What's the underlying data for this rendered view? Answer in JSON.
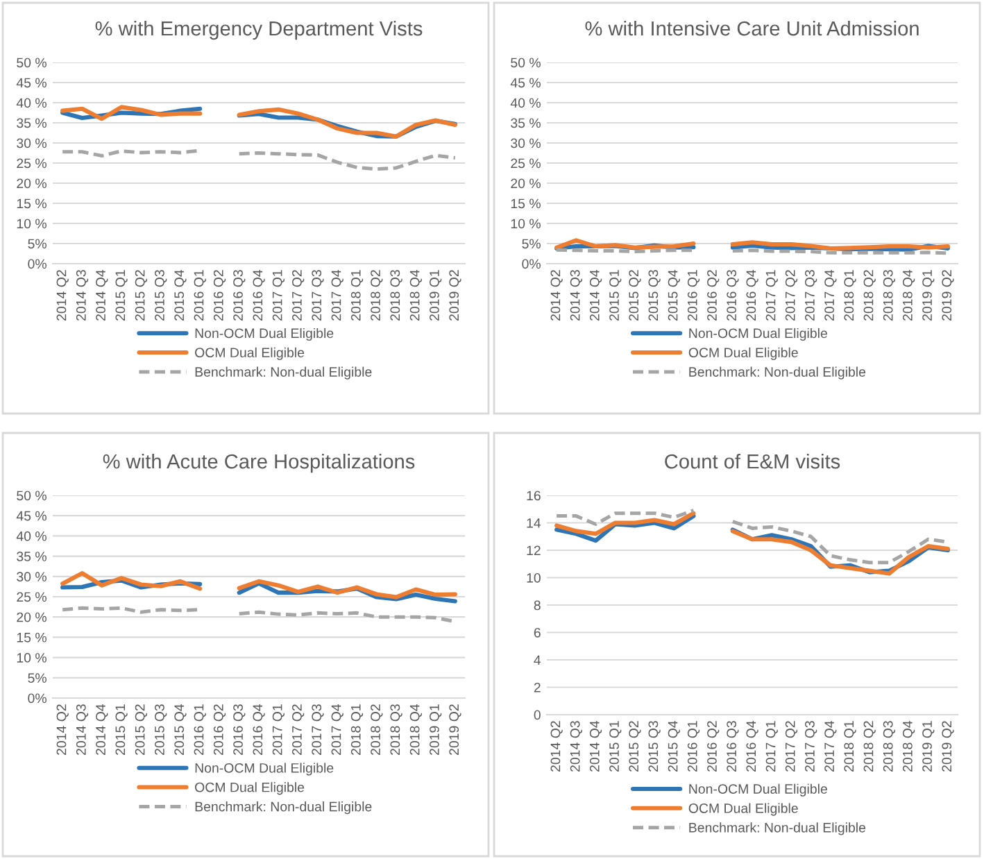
{
  "chart_data": [
    {
      "type": "line",
      "title": "% with Emergency Department Vists",
      "categories": [
        "2014 Q2",
        "2014 Q3",
        "2014 Q4",
        "2015 Q1",
        "2015 Q2",
        "2015 Q3",
        "2015 Q4",
        "2016 Q1",
        "2016 Q2",
        "2016 Q3",
        "2016 Q4",
        "2017 Q1",
        "2017 Q2",
        "2017 Q3",
        "2017 Q4",
        "2018 Q1",
        "2018 Q2",
        "2018 Q3",
        "2018 Q4",
        "2019 Q1",
        "2019 Q2"
      ],
      "ylim": [
        0,
        50
      ],
      "yticks": [
        {
          "value": 0,
          "label": "0%"
        },
        {
          "value": 5,
          "label": "5%"
        },
        {
          "value": 10,
          "label": "10 %"
        },
        {
          "value": 15,
          "label": "15 %"
        },
        {
          "value": 20,
          "label": "20 %"
        },
        {
          "value": 25,
          "label": "25 %"
        },
        {
          "value": 30,
          "label": "30 %"
        },
        {
          "value": 35,
          "label": "35 %"
        },
        {
          "value": 40,
          "label": "40 %"
        },
        {
          "value": 45,
          "label": "45 %"
        },
        {
          "value": 50,
          "label": "50 %"
        }
      ],
      "grid": "y",
      "legend": "bottom",
      "marker": "none",
      "series": [
        {
          "name": "Non-OCM Dual Eligible",
          "color": "#2e75b6",
          "line_style": "solid",
          "values": [
            37.5,
            36.2,
            36.8,
            37.5,
            37.3,
            37.2,
            38.0,
            38.5,
            null,
            36.8,
            37.2,
            36.3,
            36.3,
            35.8,
            34.2,
            32.8,
            31.7,
            31.6,
            34.0,
            35.5,
            34.7
          ]
        },
        {
          "name": "OCM Dual Eligible",
          "color": "#ed7d31",
          "line_style": "solid",
          "values": [
            38.0,
            38.5,
            36.0,
            38.9,
            38.2,
            37.0,
            37.3,
            37.3,
            null,
            37.0,
            37.9,
            38.3,
            37.3,
            35.8,
            33.6,
            32.5,
            32.5,
            31.6,
            34.5,
            35.6,
            34.5
          ]
        },
        {
          "name": "Benchmark: Non-dual Eligible",
          "color": "#a5a5a5",
          "line_style": "dashed",
          "values": [
            27.8,
            27.8,
            26.8,
            28.0,
            27.6,
            27.8,
            27.6,
            28.1,
            null,
            27.3,
            27.5,
            27.3,
            27.1,
            27.0,
            25.2,
            23.9,
            23.5,
            23.8,
            25.4,
            26.9,
            26.3
          ]
        }
      ]
    },
    {
      "type": "line",
      "title": "% with Intensive Care Unit Admission",
      "categories": [
        "2014 Q2",
        "2014 Q3",
        "2014 Q4",
        "2015 Q1",
        "2015 Q2",
        "2015 Q3",
        "2015 Q4",
        "2016 Q1",
        "2016 Q2",
        "2016 Q3",
        "2016 Q4",
        "2017 Q1",
        "2017 Q2",
        "2017 Q3",
        "2017 Q4",
        "2018 Q1",
        "2018 Q2",
        "2018 Q3",
        "2018 Q4",
        "2019 Q1",
        "2019 Q2"
      ],
      "ylim": [
        0,
        50
      ],
      "yticks": [
        {
          "value": 0,
          "label": "0%"
        },
        {
          "value": 5,
          "label": "5%"
        },
        {
          "value": 10,
          "label": "10 %"
        },
        {
          "value": 15,
          "label": "15 %"
        },
        {
          "value": 20,
          "label": "20 %"
        },
        {
          "value": 25,
          "label": "25 %"
        },
        {
          "value": 30,
          "label": "30 %"
        },
        {
          "value": 35,
          "label": "35 %"
        },
        {
          "value": 40,
          "label": "40 %"
        },
        {
          "value": 45,
          "label": "45 %"
        },
        {
          "value": 50,
          "label": "50 %"
        }
      ],
      "grid": "y",
      "legend": "bottom",
      "marker": "none",
      "series": [
        {
          "name": "Non-OCM Dual Eligible",
          "color": "#2e75b6",
          "line_style": "solid",
          "values": [
            3.8,
            4.3,
            4.3,
            4.4,
            3.9,
            4.5,
            4.0,
            4.1,
            null,
            4.0,
            4.5,
            4.0,
            3.9,
            4.0,
            3.8,
            3.6,
            3.7,
            3.6,
            3.5,
            4.4,
            3.8
          ]
        },
        {
          "name": "OCM Dual Eligible",
          "color": "#ed7d31",
          "line_style": "solid",
          "values": [
            4.0,
            5.8,
            4.3,
            4.6,
            4.0,
            4.2,
            4.3,
            5.0,
            null,
            4.8,
            5.3,
            4.8,
            4.8,
            4.4,
            3.8,
            3.9,
            4.1,
            4.3,
            4.3,
            4.0,
            4.3
          ]
        },
        {
          "name": "Benchmark: Non-dual Eligible",
          "color": "#a5a5a5",
          "line_style": "dashed",
          "values": [
            3.4,
            3.3,
            3.2,
            3.2,
            3.0,
            3.2,
            3.3,
            3.3,
            null,
            3.2,
            3.3,
            3.1,
            3.1,
            3.0,
            2.7,
            2.7,
            2.7,
            2.7,
            2.7,
            2.8,
            2.6
          ]
        }
      ]
    },
    {
      "type": "line",
      "title": "% with Acute Care Hospitalizations",
      "categories": [
        "2014 Q2",
        "2014 Q3",
        "2014 Q4",
        "2015 Q1",
        "2015 Q2",
        "2015 Q3",
        "2015 Q4",
        "2016 Q1",
        "2016 Q2",
        "2016 Q3",
        "2016 Q4",
        "2017 Q1",
        "2017 Q2",
        "2017 Q3",
        "2017 Q4",
        "2018 Q1",
        "2018 Q2",
        "2018 Q3",
        "2018 Q4",
        "2019 Q1",
        "2019 Q2"
      ],
      "ylim": [
        0,
        50
      ],
      "yticks": [
        {
          "value": 0,
          "label": "0%"
        },
        {
          "value": 5,
          "label": "5%"
        },
        {
          "value": 10,
          "label": "10 %"
        },
        {
          "value": 15,
          "label": "15 %"
        },
        {
          "value": 20,
          "label": "20 %"
        },
        {
          "value": 25,
          "label": "25 %"
        },
        {
          "value": 30,
          "label": "30 %"
        },
        {
          "value": 35,
          "label": "35 %"
        },
        {
          "value": 40,
          "label": "40 %"
        },
        {
          "value": 45,
          "label": "45 %"
        },
        {
          "value": 50,
          "label": "50 %"
        }
      ],
      "grid": "y",
      "legend": "bottom",
      "marker": "none",
      "series": [
        {
          "name": "Non-OCM Dual Eligible",
          "color": "#2e75b6",
          "line_style": "solid",
          "values": [
            27.3,
            27.4,
            28.6,
            29.0,
            27.3,
            28.0,
            28.3,
            28.1,
            null,
            26.0,
            28.3,
            26.0,
            26.0,
            26.4,
            26.3,
            27.0,
            24.9,
            24.4,
            25.5,
            24.5,
            23.9
          ]
        },
        {
          "name": "OCM Dual Eligible",
          "color": "#ed7d31",
          "line_style": "solid",
          "values": [
            28.2,
            30.8,
            27.8,
            29.6,
            28.0,
            27.6,
            28.8,
            27.0,
            null,
            27.1,
            28.8,
            27.8,
            26.2,
            27.5,
            26.0,
            27.3,
            25.6,
            24.9,
            26.8,
            25.5,
            25.6
          ]
        },
        {
          "name": "Benchmark: Non-dual Eligible",
          "color": "#a5a5a5",
          "line_style": "dashed",
          "values": [
            21.8,
            22.2,
            22.0,
            22.2,
            21.2,
            21.8,
            21.6,
            21.8,
            null,
            20.8,
            21.2,
            20.7,
            20.5,
            21.0,
            20.8,
            21.0,
            20.0,
            20.0,
            20.0,
            19.8,
            18.9
          ]
        }
      ]
    },
    {
      "type": "line",
      "title": "Count of E&M visits",
      "categories": [
        "2014 Q2",
        "2014 Q3",
        "2014 Q4",
        "2015 Q1",
        "2015 Q2",
        "2015 Q3",
        "2015 Q4",
        "2016 Q1",
        "2016 Q2",
        "2016 Q3",
        "2016 Q4",
        "2017 Q1",
        "2017 Q2",
        "2017 Q3",
        "2017 Q4",
        "2018 Q1",
        "2018 Q2",
        "2018 Q3",
        "2018 Q4",
        "2019 Q1",
        "2019 Q2"
      ],
      "ylim": [
        0,
        16
      ],
      "yticks": [
        0,
        2,
        4,
        6,
        8,
        10,
        12,
        14,
        16
      ],
      "grid": "y",
      "legend": "bottom",
      "marker": "none",
      "series": [
        {
          "name": "Non-OCM Dual Eligible",
          "color": "#2e75b6",
          "line_style": "solid",
          "values": [
            13.5,
            13.2,
            12.7,
            13.9,
            13.8,
            14.0,
            13.6,
            14.5,
            null,
            13.5,
            12.8,
            13.1,
            12.8,
            12.3,
            10.8,
            10.9,
            10.4,
            10.5,
            11.2,
            12.2,
            12.0
          ]
        },
        {
          "name": "OCM Dual Eligible",
          "color": "#ed7d31",
          "line_style": "solid",
          "values": [
            13.8,
            13.4,
            13.2,
            14.0,
            14.0,
            14.2,
            13.9,
            14.7,
            null,
            13.4,
            12.8,
            12.8,
            12.6,
            12.0,
            10.9,
            10.7,
            10.5,
            10.3,
            11.5,
            12.3,
            12.1
          ]
        },
        {
          "name": "Benchmark: Non-dual Eligible",
          "color": "#a5a5a5",
          "line_style": "dashed",
          "values": [
            14.5,
            14.5,
            13.9,
            14.7,
            14.7,
            14.7,
            14.4,
            14.9,
            null,
            14.1,
            13.6,
            13.7,
            13.4,
            13.0,
            11.6,
            11.3,
            11.1,
            11.1,
            11.9,
            12.8,
            12.6
          ]
        }
      ]
    }
  ]
}
